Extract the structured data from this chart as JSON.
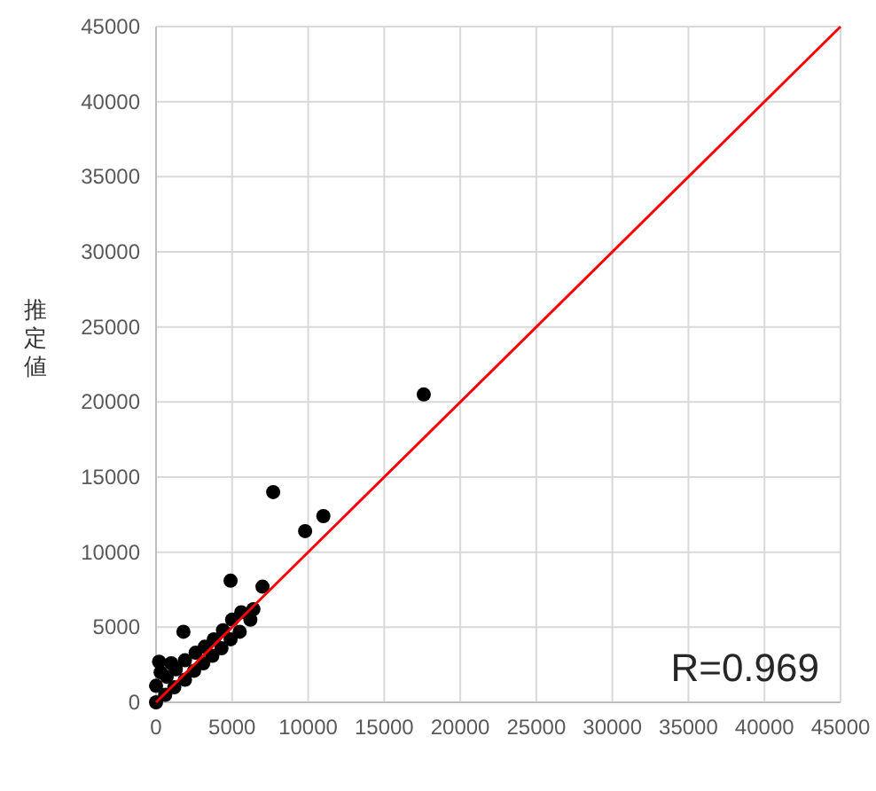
{
  "chart_data": {
    "type": "scatter",
    "ylabel": "推定値",
    "xlim": [
      0,
      45000
    ],
    "ylim": [
      0,
      45000
    ],
    "xticks": [
      0,
      5000,
      10000,
      15000,
      20000,
      25000,
      30000,
      35000,
      40000,
      45000
    ],
    "yticks": [
      0,
      5000,
      10000,
      15000,
      20000,
      25000,
      30000,
      35000,
      40000,
      45000
    ],
    "grid": true,
    "annotations": [
      "R=0.969"
    ],
    "series": [
      {
        "type": "scatter",
        "marker": "circle",
        "color": "#000000",
        "x": [
          0,
          0,
          600,
          700,
          1200,
          1300,
          1900,
          1900,
          2500,
          2600,
          3100,
          3200,
          3700,
          3800,
          4300,
          4400,
          4900,
          5000,
          5500,
          5600,
          6200,
          6400,
          300,
          1000,
          200,
          1800,
          4900,
          7000,
          7700,
          9800,
          11000,
          17600
        ],
        "values": [
          0,
          1100,
          500,
          1700,
          1000,
          2200,
          1500,
          2800,
          2100,
          3300,
          2600,
          3700,
          3100,
          4200,
          3600,
          4800,
          4200,
          5500,
          4700,
          6000,
          5500,
          6200,
          2000,
          2600,
          2700,
          4700,
          8100,
          7700,
          14000,
          11400,
          12400,
          20500
        ]
      },
      {
        "type": "line",
        "color": "#ff0000",
        "x": [
          0,
          45000
        ],
        "values": [
          0,
          45000
        ]
      }
    ]
  }
}
